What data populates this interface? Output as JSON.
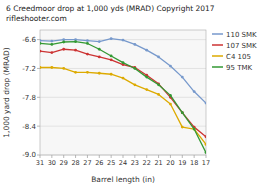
{
  "chart_data": {
    "type": "line",
    "title": "6 Creedmoor drop at 1,000 yds (MRAD) Copyright 2017",
    "subtitle": "rifleshooter.com",
    "x_label": "Barrel length (in)",
    "y_label": "1,000 yard drop (MRAD)",
    "x": [
      31,
      30,
      29,
      28,
      27,
      26,
      25,
      24,
      23,
      22,
      21,
      20,
      19,
      18,
      17
    ],
    "xlim": [
      31,
      17
    ],
    "ylim": [
      -9.0,
      -6.4
    ],
    "xticks": [
      31,
      30,
      29,
      28,
      27,
      26,
      25,
      24,
      23,
      22,
      21,
      20,
      19,
      18,
      17
    ],
    "yticks": [
      -6.6,
      -7.2,
      -7.8,
      -8.4,
      {
        "value": -9.0,
        "label": "-9.0"
      }
    ],
    "grid": true,
    "legend": "right",
    "marker": "point",
    "series": [
      {
        "name": "110 SMK",
        "color": "#7799cc",
        "values": [
          -6.62,
          -6.63,
          -6.6,
          -6.6,
          -6.62,
          -6.64,
          -6.58,
          -6.61,
          -6.7,
          -6.82,
          -6.96,
          -7.15,
          -7.38,
          -7.68,
          -7.92
        ]
      },
      {
        "name": "107 SMK",
        "color": "#cc3333",
        "values": [
          -6.84,
          -6.87,
          -6.8,
          -6.82,
          -6.9,
          -6.96,
          -7.02,
          -7.12,
          -7.18,
          -7.34,
          -7.52,
          -7.8,
          -8.12,
          -8.42,
          -8.62
        ]
      },
      {
        "name": "C4 105",
        "color": "#ddaa00",
        "values": [
          -7.18,
          -7.18,
          -7.2,
          -7.28,
          -7.28,
          -7.3,
          -7.32,
          -7.4,
          -7.54,
          -7.64,
          -7.74,
          -7.94,
          -8.42,
          -8.46,
          -8.78
        ]
      },
      {
        "name": "95 TMK",
        "color": "#339933",
        "values": [
          -6.68,
          -6.7,
          -6.65,
          -6.64,
          -6.68,
          -6.8,
          -6.94,
          -7.08,
          -7.2,
          -7.38,
          -7.54,
          -7.76,
          -8.12,
          -8.46,
          -8.95
        ]
      }
    ]
  }
}
